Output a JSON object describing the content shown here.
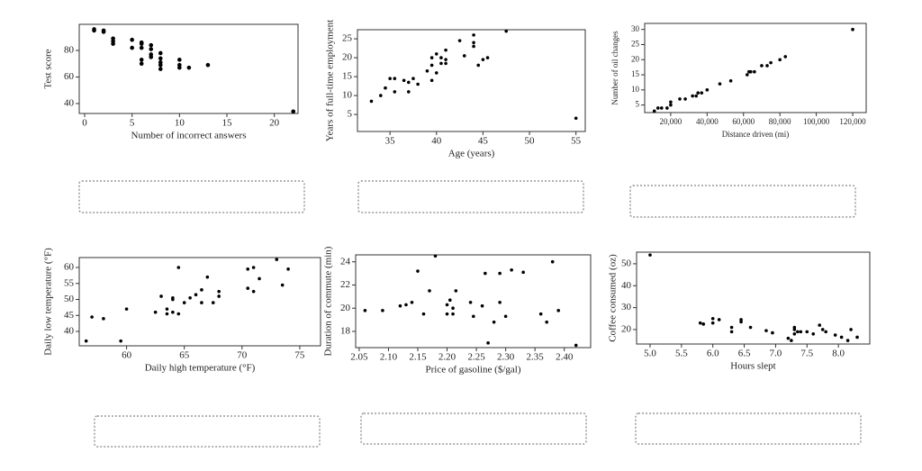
{
  "chart_data": [
    {
      "type": "scatter",
      "x_label": "Number of incorrect answers",
      "y_label": "Test score",
      "color": "#000000",
      "x": [
        1,
        1,
        2,
        2,
        3,
        3,
        3,
        5,
        5,
        6,
        6,
        6,
        6,
        6,
        7,
        7,
        7,
        7,
        8,
        8,
        8,
        8,
        8,
        10,
        10,
        10,
        11,
        13,
        22
      ],
      "values": [
        96,
        95,
        95,
        94,
        89,
        87,
        85,
        88,
        82,
        86,
        85,
        82,
        73,
        70,
        84,
        81,
        77,
        75,
        78,
        74,
        71,
        69,
        66,
        73,
        69,
        67,
        67,
        69,
        34
      ],
      "xlim": [
        -0.57,
        22.5
      ],
      "ylim": [
        32.5,
        99.7
      ],
      "xticks": [
        0,
        5,
        10,
        15,
        20
      ],
      "yticks": [
        40,
        60,
        80
      ]
    },
    {
      "type": "scatter",
      "x_label": "Age (years)",
      "y_label": "Years of full-time employment",
      "color": "#000000",
      "x": [
        33,
        34,
        34.5,
        35,
        35.5,
        35.5,
        36.5,
        37,
        37.5,
        37,
        38,
        39,
        39.5,
        39.5,
        39.5,
        40,
        40,
        40.5,
        40.5,
        41,
        41,
        41,
        42.5,
        43,
        44,
        44,
        44,
        44.5,
        45,
        45.5,
        47.5,
        55
      ],
      "values": [
        8.5,
        10,
        12,
        14.5,
        11,
        14.5,
        14,
        13.5,
        14.5,
        11,
        13,
        16.5,
        14,
        18,
        20,
        16,
        21,
        18.5,
        20,
        19.5,
        22,
        18.5,
        24.5,
        20.5,
        26,
        24,
        23,
        18,
        19.5,
        20,
        27,
        4
      ],
      "xlim": [
        31.5,
        56
      ],
      "ylim": [
        0.5,
        27.4
      ],
      "xticks": [
        35,
        40,
        45,
        50,
        55
      ],
      "yticks": [
        5,
        10,
        15,
        20,
        25
      ]
    },
    {
      "type": "scatter",
      "x_label": "Distance driven (mi)",
      "y_label": "Number of oil changes",
      "color": "#000000",
      "x": [
        11000,
        13000,
        15000,
        18000,
        20000,
        20000,
        25000,
        28000,
        32000,
        34000,
        35000,
        37000,
        40000,
        47000,
        53000,
        62000,
        63000,
        64000,
        66000,
        70000,
        73000,
        75000,
        80000,
        83000,
        120000
      ],
      "values": [
        3,
        4,
        4,
        4,
        5,
        6,
        7,
        7,
        8,
        8,
        9,
        9,
        10,
        12,
        13,
        15,
        16,
        16,
        16,
        18,
        18,
        19,
        20,
        21,
        30
      ],
      "xlim": [
        5700,
        127400
      ],
      "ylim": [
        2.5,
        32
      ],
      "xticks": [
        {
          "value": 20000,
          "label": "20,000"
        },
        {
          "value": 40000,
          "label": "40,000"
        },
        {
          "value": 60000,
          "label": "60,000"
        },
        {
          "value": 80000,
          "label": "80,000"
        },
        {
          "value": 100000,
          "label": "100,000"
        },
        {
          "value": 120000,
          "label": "120,000"
        }
      ],
      "yticks": [
        5,
        10,
        15,
        20,
        25,
        30
      ]
    },
    {
      "type": "scatter",
      "x_label": "Daily high temperature (°F)",
      "y_label": "Daily low temperature (°F)",
      "color": "#000000",
      "x": [
        56.5,
        57,
        58,
        59.5,
        60,
        62.5,
        63,
        63.5,
        63.5,
        64,
        64,
        64,
        64.5,
        64.5,
        65,
        65.5,
        66,
        66.5,
        66.5,
        67,
        67.5,
        68,
        68,
        70.5,
        70.5,
        71,
        71,
        71.5,
        73,
        73.5,
        74
      ],
      "values": [
        37,
        44.5,
        44,
        37,
        47,
        46,
        51,
        45.5,
        47,
        50,
        50.5,
        46,
        60,
        45.5,
        49,
        50.5,
        51.5,
        49,
        53,
        57,
        49,
        52.5,
        51,
        59.5,
        53.5,
        52.5,
        60,
        56.5,
        62.5,
        54.5,
        59.5
      ],
      "xlim": [
        55.9,
        76.8
      ],
      "ylim": [
        35.5,
        63.1
      ],
      "xticks": [
        60,
        65,
        70,
        75
      ],
      "yticks": [
        40,
        45,
        50,
        55,
        60
      ]
    },
    {
      "type": "scatter",
      "x_label": "Price of gasoline ($/gal)",
      "y_label": "Duration of commute (min)",
      "color": "#000000",
      "x": [
        2.06,
        2.09,
        2.12,
        2.13,
        2.14,
        2.15,
        2.16,
        2.17,
        2.18,
        2.2,
        2.2,
        2.205,
        2.21,
        2.21,
        2.215,
        2.24,
        2.245,
        2.26,
        2.265,
        2.27,
        2.28,
        2.29,
        2.29,
        2.3,
        2.31,
        2.33,
        2.36,
        2.37,
        2.38,
        2.39,
        2.42
      ],
      "values": [
        19.8,
        19.8,
        20.2,
        20.3,
        20.5,
        23.2,
        19.5,
        21.5,
        24.5,
        20.3,
        19.5,
        20.7,
        19.5,
        20,
        21.5,
        20.5,
        19.3,
        20.2,
        23,
        17,
        18.8,
        20.5,
        23,
        19.3,
        23.3,
        23.1,
        19.5,
        18.8,
        24,
        19.8,
        16.8
      ],
      "xlim": [
        2.044,
        2.445
      ],
      "ylim": [
        16.6,
        24.6
      ],
      "xticks": [
        2.05,
        {
          "value": 2.1,
          "label": "2.10"
        },
        2.15,
        {
          "value": 2.2,
          "label": "2.20"
        },
        2.25,
        {
          "value": 2.3,
          "label": "2.30"
        },
        2.35,
        {
          "value": 2.4,
          "label": "2.40"
        }
      ],
      "yticks": [
        18,
        20,
        22,
        24
      ]
    },
    {
      "type": "scatter",
      "x_label": "Hours slept",
      "y_label": "Coffee consumed (oz)",
      "color": "#000000",
      "x": [
        5,
        5.8,
        5.85,
        6,
        6,
        6.1,
        6.3,
        6.3,
        6.45,
        6.45,
        6.6,
        6.85,
        6.95,
        7.2,
        7.25,
        7.3,
        7.3,
        7.3,
        7.35,
        7.4,
        7.5,
        7.6,
        7.7,
        7.75,
        7.8,
        7.95,
        8.05,
        8.15,
        8.2,
        8.3
      ],
      "values": [
        54,
        23,
        22.5,
        23,
        25,
        24.5,
        21,
        19,
        24.5,
        23.5,
        21,
        19.5,
        18.5,
        16,
        15,
        20,
        21,
        18,
        19,
        19,
        19,
        18,
        22,
        20,
        19,
        17.5,
        16.5,
        15,
        20,
        16.5
      ],
      "xlim": [
        4.785,
        8.5
      ],
      "ylim": [
        13.4,
        55.3
      ],
      "xticks": [
        {
          "value": 5,
          "label": "5.0"
        },
        5.5,
        {
          "value": 6,
          "label": "6.0"
        },
        6.5,
        {
          "value": 7,
          "label": "7.0"
        },
        7.5,
        {
          "value": 8,
          "label": "8.0"
        }
      ],
      "yticks": [
        20,
        30,
        40,
        50
      ]
    }
  ]
}
